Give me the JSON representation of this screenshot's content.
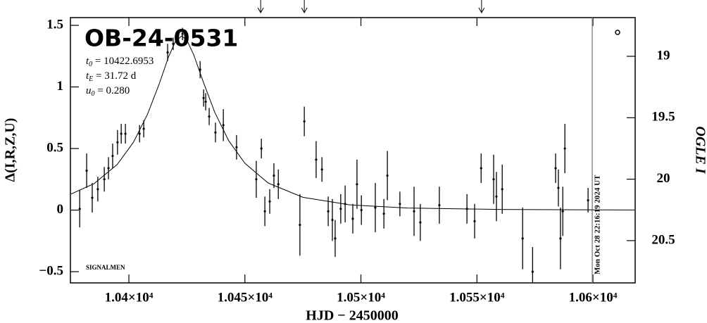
{
  "chart_data": {
    "type": "scatter",
    "title": "OB-24-0531",
    "params": [
      {
        "symbol": "t",
        "subscript": "0",
        "text": " = 10422.6953"
      },
      {
        "symbol": "t",
        "subscript": "E",
        "text": " = 31.72  d"
      },
      {
        "symbol": "u",
        "subscript": "0",
        "text": " = 0.280"
      }
    ],
    "annotation": "SIGNALMEN",
    "date_stamp": "Mon Oct 28 22:16:19 2024 UT",
    "date_line": 10599.7,
    "date_color": "#8c8c8c",
    "xlabel": "HJD − 2450000",
    "ylabel": "Δ(I,R,Z,U)",
    "y2label": "OGLE I",
    "xlim": [
      10374.8,
      10618.2
    ],
    "ylim": [
      -0.591,
      1.563
    ],
    "y2lim": [
      20.844,
      18.685
    ],
    "xticks": [
      {
        "value": 10400,
        "label": "1.04×10⁴"
      },
      {
        "value": 10450,
        "label": "1.045×10⁴"
      },
      {
        "value": 10500,
        "label": "1.05×10⁴"
      },
      {
        "value": 10550,
        "label": "1.055×10⁴"
      },
      {
        "value": 10600,
        "label": "1.06×10⁴"
      }
    ],
    "yticks": [
      1.5,
      1,
      0.5,
      0,
      {
        "value": -0.5,
        "label": "−0.5"
      }
    ],
    "y2ticks": [
      19,
      19.5,
      20,
      20.5
    ],
    "arrows": [
      10456.8,
      10475.6,
      10552.0
    ],
    "series": [
      {
        "kind": "errorbar",
        "color": "#000000",
        "x": [
          10378.8,
          10381.8,
          10384.2,
          10386.6,
          10389.4,
          10391.2,
          10393.0,
          10395.1,
          10396.7,
          10398.5,
          10404.6,
          10406.4,
          10416.7,
          10419.1,
          10423.1,
          10430.7,
          10432.2,
          10433.1,
          10434.6,
          10437.3,
          10440.7,
          10446.4,
          10454.9,
          10457.1,
          10458.6,
          10460.7,
          10462.5,
          10464.4,
          10473.7,
          10475.6,
          10480.7,
          10483.2,
          10485.9,
          10487.7,
          10488.9,
          10491.3,
          10493.2,
          10496.5,
          10498.3,
          10500.2,
          10506.2,
          10509.9,
          10511.4,
          10516.8,
          10522.9,
          10525.6,
          10533.8,
          10545.7,
          10549.0,
          10551.8,
          10557.2,
          10558.4,
          10560.9,
          10569.7,
          10574.0,
          10583.9,
          10585.1,
          10586.0,
          10587.0,
          10587.9,
          10597.9
        ],
        "values": [
          0.01,
          0.32,
          0.1,
          0.17,
          0.25,
          0.34,
          0.44,
          0.55,
          0.62,
          0.62,
          0.62,
          0.66,
          1.28,
          1.35,
          1.43,
          1.14,
          0.91,
          0.88,
          0.76,
          0.63,
          0.69,
          0.51,
          0.25,
          0.5,
          -0.01,
          0.07,
          0.28,
          0.21,
          -0.12,
          0.72,
          0.41,
          0.33,
          -0.01,
          -0.08,
          -0.23,
          0.01,
          0.05,
          -0.07,
          0.21,
          0.0,
          0.02,
          -0.03,
          0.28,
          0.05,
          -0.01,
          -0.1,
          0.04,
          0.01,
          -0.09,
          0.34,
          0.25,
          0.11,
          0.17,
          -0.23,
          -0.5,
          0.34,
          0.18,
          -0.23,
          -0.01,
          0.5,
          0.08
        ],
        "errors": [
          0.15,
          0.14,
          0.12,
          0.1,
          0.1,
          0.09,
          0.1,
          0.1,
          0.08,
          0.08,
          0.07,
          0.07,
          0.07,
          0.05,
          0.05,
          0.07,
          0.07,
          0.07,
          0.07,
          0.08,
          0.13,
          0.1,
          0.15,
          0.08,
          0.12,
          0.1,
          0.1,
          0.12,
          0.25,
          0.12,
          0.15,
          0.1,
          0.12,
          0.17,
          0.15,
          0.12,
          0.15,
          0.12,
          0.2,
          0.12,
          0.2,
          0.12,
          0.2,
          0.1,
          0.2,
          0.15,
          0.15,
          0.12,
          0.14,
          0.12,
          0.2,
          0.2,
          0.2,
          0.25,
          0.2,
          0.12,
          0.15,
          0.25,
          0.2,
          0.2,
          0.1
        ]
      },
      {
        "kind": "line",
        "color": "#000000",
        "x": [
          10375,
          10385,
          10395,
          10402,
          10408,
          10413,
          10417,
          10420,
          10422.7,
          10425,
          10428,
          10432,
          10437,
          10443,
          10450,
          10460,
          10475,
          10495,
          10520,
          10560,
          10618
        ],
        "values": [
          0.13,
          0.215,
          0.371,
          0.552,
          0.777,
          1.021,
          1.24,
          1.368,
          1.413,
          1.38,
          1.258,
          1.044,
          0.794,
          0.564,
          0.38,
          0.22,
          0.104,
          0.043,
          0.017,
          0.005,
          0.001
        ]
      }
    ]
  }
}
